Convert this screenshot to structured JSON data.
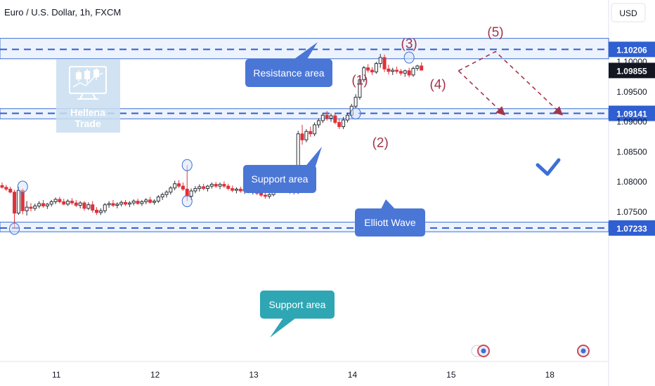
{
  "header": {
    "title": "Euro / U.S. Dollar, 1h, FXCM",
    "currency": "USD"
  },
  "logo": {
    "line1": "Hellena",
    "line2": "Trade"
  },
  "chart_data": {
    "type": "candlestick",
    "symbol": "Euro / U.S. Dollar",
    "timeframe": "1h",
    "source": "FXCM",
    "y_axis_ticks": [
      1.1,
      1.095,
      1.09,
      1.085,
      1.08,
      1.075
    ],
    "y_axis_tick_labels": [
      "1.10000",
      "1.09500",
      "1.09000",
      "1.08500",
      "1.08000",
      "1.07500"
    ],
    "x_axis_ticks": [
      {
        "label": "11",
        "x_index": 5
      },
      {
        "label": "12",
        "x_index": 29
      },
      {
        "label": "13",
        "x_index": 53
      },
      {
        "label": "14",
        "x_index": 77
      },
      {
        "label": "15",
        "x_index": 101
      },
      {
        "label": "18",
        "x_index": 125
      }
    ],
    "ylim": [
      1.0704,
      1.1055
    ],
    "price_levels": [
      {
        "value": 1.10206,
        "label": "1.10206",
        "role": "resistance"
      },
      {
        "value": 1.09141,
        "label": "1.09141",
        "role": "support"
      },
      {
        "value": 1.07233,
        "label": "1.07233",
        "role": "support"
      }
    ],
    "last_price": {
      "value": 1.09855,
      "label": "1.09855"
    },
    "zones": [
      {
        "from": 1.1005,
        "to": 1.1039,
        "label": "Resistance area"
      },
      {
        "from": 1.0905,
        "to": 1.0922,
        "label": "Support area"
      },
      {
        "from": 1.0717,
        "to": 1.0733,
        "label": "Support area"
      }
    ],
    "wave_labels": [
      {
        "label": "(1)",
        "price": 1.0962,
        "x_index": 87
      },
      {
        "label": "(2)",
        "price": 1.0858,
        "x_index": 92
      },
      {
        "label": "(3)",
        "price": 1.1023,
        "x_index": 99
      },
      {
        "label": "(4)",
        "price": 1.0955,
        "x_index": 106
      },
      {
        "label": "(5)",
        "price": 1.1042,
        "x_index": 120
      }
    ],
    "callouts": [
      {
        "text": "Resistance area"
      },
      {
        "text": "Support area"
      },
      {
        "text": "Elliott Wave"
      },
      {
        "text": "Support area"
      }
    ],
    "projection_path": [
      {
        "x_index": 111,
        "price": 1.0985
      },
      {
        "x_index": 120,
        "price": 1.1017
      },
      {
        "x_index": 136,
        "price": 1.0913
      }
    ],
    "projection_alt": [
      {
        "x_index": 111,
        "price": 1.0985
      },
      {
        "x_index": 122,
        "price": 1.0913
      }
    ],
    "candles": [
      [
        1.0794,
        1.0799,
        1.0789,
        1.0791
      ],
      [
        1.0791,
        1.0795,
        1.0785,
        1.0788
      ],
      [
        1.0788,
        1.0792,
        1.0781,
        1.0783
      ],
      [
        1.0783,
        1.0787,
        1.0722,
        1.0748
      ],
      [
        1.0748,
        1.0792,
        1.0745,
        1.0786
      ],
      [
        1.0786,
        1.0789,
        1.0746,
        1.0752
      ],
      [
        1.0752,
        1.0768,
        1.0744,
        1.0758
      ],
      [
        1.0758,
        1.0765,
        1.0751,
        1.0756
      ],
      [
        1.0756,
        1.0764,
        1.0752,
        1.076
      ],
      [
        1.076,
        1.0768,
        1.0756,
        1.0764
      ],
      [
        1.0764,
        1.077,
        1.0757,
        1.076
      ],
      [
        1.076,
        1.0765,
        1.0755,
        1.0763
      ],
      [
        1.0763,
        1.077,
        1.0759,
        1.0767
      ],
      [
        1.0767,
        1.0774,
        1.0763,
        1.0771
      ],
      [
        1.0771,
        1.0775,
        1.0764,
        1.0767
      ],
      [
        1.0767,
        1.0772,
        1.0761,
        1.0763
      ],
      [
        1.0763,
        1.0771,
        1.076,
        1.0768
      ],
      [
        1.0768,
        1.0773,
        1.0762,
        1.0765
      ],
      [
        1.0765,
        1.077,
        1.0758,
        1.0761
      ],
      [
        1.0761,
        1.0768,
        1.0756,
        1.0765
      ],
      [
        1.0765,
        1.0768,
        1.0752,
        1.0756
      ],
      [
        1.0756,
        1.0766,
        1.0753,
        1.0762
      ],
      [
        1.0762,
        1.0768,
        1.0749,
        1.0753
      ],
      [
        1.0753,
        1.0758,
        1.0745,
        1.0749
      ],
      [
        1.0749,
        1.0756,
        1.0745,
        1.0752
      ],
      [
        1.0752,
        1.0765,
        1.0748,
        1.0762
      ],
      [
        1.0762,
        1.0768,
        1.0757,
        1.0764
      ],
      [
        1.0764,
        1.077,
        1.0758,
        1.0761
      ],
      [
        1.0761,
        1.0766,
        1.0756,
        1.0763
      ],
      [
        1.0763,
        1.0769,
        1.0759,
        1.0766
      ],
      [
        1.0766,
        1.077,
        1.076,
        1.0763
      ],
      [
        1.0763,
        1.0768,
        1.0758,
        1.0765
      ],
      [
        1.0765,
        1.0771,
        1.0761,
        1.0768
      ],
      [
        1.0768,
        1.0772,
        1.0762,
        1.0764
      ],
      [
        1.0764,
        1.077,
        1.076,
        1.0767
      ],
      [
        1.0767,
        1.0773,
        1.0763,
        1.077
      ],
      [
        1.077,
        1.0775,
        1.0764,
        1.0766
      ],
      [
        1.0766,
        1.0771,
        1.0762,
        1.0768
      ],
      [
        1.0768,
        1.0778,
        1.0765,
        1.0775
      ],
      [
        1.0775,
        1.0782,
        1.077,
        1.0779
      ],
      [
        1.0779,
        1.0786,
        1.0774,
        1.0783
      ],
      [
        1.0783,
        1.0793,
        1.0779,
        1.079
      ],
      [
        1.079,
        1.0802,
        1.0786,
        1.0797
      ],
      [
        1.0797,
        1.0803,
        1.079,
        1.0793
      ],
      [
        1.0793,
        1.0799,
        1.0785,
        1.0788
      ],
      [
        1.0788,
        1.0828,
        1.0768,
        1.0776
      ],
      [
        1.0776,
        1.0789,
        1.077,
        1.0785
      ],
      [
        1.0785,
        1.0793,
        1.0781,
        1.0789
      ],
      [
        1.0789,
        1.0796,
        1.0784,
        1.0792
      ],
      [
        1.0792,
        1.0797,
        1.0786,
        1.0789
      ],
      [
        1.0789,
        1.0795,
        1.0784,
        1.0793
      ],
      [
        1.0793,
        1.0799,
        1.0789,
        1.0796
      ],
      [
        1.0796,
        1.08,
        1.079,
        1.0793
      ],
      [
        1.0793,
        1.0799,
        1.0788,
        1.0796
      ],
      [
        1.0796,
        1.0801,
        1.079,
        1.0793
      ],
      [
        1.0793,
        1.0797,
        1.0786,
        1.0789
      ],
      [
        1.0789,
        1.0794,
        1.0783,
        1.0786
      ],
      [
        1.0786,
        1.0791,
        1.0781,
        1.0788
      ],
      [
        1.0788,
        1.0792,
        1.0782,
        1.0785
      ],
      [
        1.0785,
        1.079,
        1.078,
        1.0787
      ],
      [
        1.0787,
        1.0791,
        1.0781,
        1.0784
      ],
      [
        1.0784,
        1.0789,
        1.0779,
        1.0786
      ],
      [
        1.0786,
        1.079,
        1.0778,
        1.0781
      ],
      [
        1.0781,
        1.0786,
        1.0775,
        1.0778
      ],
      [
        1.0778,
        1.0783,
        1.0772,
        1.0776
      ],
      [
        1.0776,
        1.0782,
        1.0772,
        1.0779
      ],
      [
        1.0779,
        1.0789,
        1.0776,
        1.0786
      ],
      [
        1.0786,
        1.0802,
        1.0782,
        1.0799
      ],
      [
        1.0799,
        1.0805,
        1.0786,
        1.079
      ],
      [
        1.079,
        1.0795,
        1.0782,
        1.0786
      ],
      [
        1.0786,
        1.079,
        1.078,
        1.0784
      ],
      [
        1.0784,
        1.0786,
        1.0779,
        1.0782
      ],
      [
        1.0782,
        1.0885,
        1.078,
        1.088
      ],
      [
        1.088,
        1.0895,
        1.0862,
        1.087
      ],
      [
        1.087,
        1.0888,
        1.0866,
        1.0884
      ],
      [
        1.0884,
        1.0892,
        1.0875,
        1.088
      ],
      [
        1.088,
        1.0899,
        1.0876,
        1.0895
      ],
      [
        1.0895,
        1.0906,
        1.089,
        1.0902
      ],
      [
        1.0902,
        1.0915,
        1.0898,
        1.0911
      ],
      [
        1.0911,
        1.0918,
        1.0902,
        1.0906
      ],
      [
        1.0906,
        1.0914,
        1.09,
        1.091
      ],
      [
        1.091,
        1.0915,
        1.0896,
        1.0899
      ],
      [
        1.0899,
        1.0905,
        1.0888,
        1.0892
      ],
      [
        1.0892,
        1.0908,
        1.0888,
        1.0903
      ],
      [
        1.0903,
        1.0915,
        1.0899,
        1.0911
      ],
      [
        1.0911,
        1.093,
        1.0907,
        1.0926
      ],
      [
        1.0926,
        1.0946,
        1.0922,
        1.0941
      ],
      [
        1.0941,
        1.0975,
        1.0937,
        1.097
      ],
      [
        1.097,
        1.0993,
        1.0966,
        1.099
      ],
      [
        1.099,
        1.0996,
        1.0982,
        1.0986
      ],
      [
        1.0986,
        1.0991,
        1.0978,
        1.0983
      ],
      [
        1.0983,
        1.1,
        1.098,
        1.0997
      ],
      [
        1.0997,
        1.1013,
        1.099,
        1.1007
      ],
      [
        1.1007,
        1.1012,
        1.0983,
        1.0988
      ],
      [
        1.0988,
        1.0995,
        1.0979,
        1.0984
      ],
      [
        1.0984,
        1.099,
        1.0978,
        1.0986
      ],
      [
        1.0986,
        1.0992,
        1.098,
        1.0984
      ],
      [
        1.0984,
        1.0988,
        1.0977,
        1.0981
      ],
      [
        1.0981,
        1.0987,
        1.0975,
        1.0985
      ],
      [
        1.0985,
        1.099,
        1.0974,
        1.0978
      ],
      [
        1.0978,
        1.0992,
        1.0975,
        1.0989
      ],
      [
        1.0989,
        1.0995,
        1.0985,
        1.0993
      ],
      [
        1.0993,
        1.0999,
        1.0988,
        1.0986
      ]
    ]
  }
}
